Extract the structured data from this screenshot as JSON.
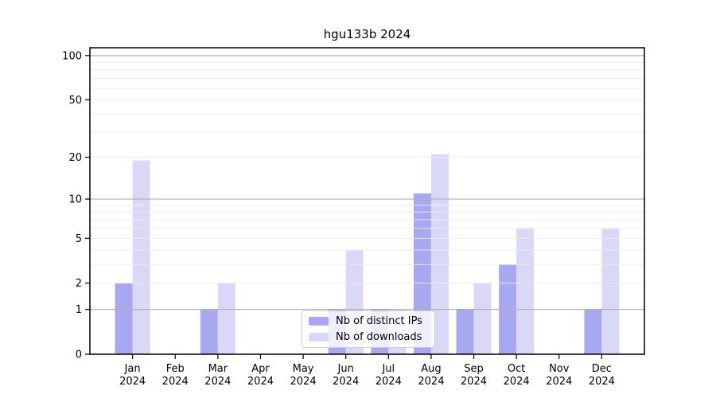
{
  "chart_data": {
    "type": "bar",
    "title": "hgu133b 2024",
    "categories": [
      "Jan",
      "Feb",
      "Mar",
      "Apr",
      "May",
      "Jun",
      "Jul",
      "Aug",
      "Sep",
      "Oct",
      "Nov",
      "Dec"
    ],
    "category_sublabel": "2024",
    "series": [
      {
        "name": "Nb of distinct IPs",
        "color": "#a8a8f0",
        "values": [
          2,
          0,
          1,
          0,
          0,
          1,
          1,
          11,
          1,
          3,
          0,
          1
        ]
      },
      {
        "name": "Nb of downloads",
        "color": "#d9d9f7",
        "values": [
          19,
          0,
          2,
          0,
          0,
          4,
          1,
          21,
          2,
          6,
          0,
          6
        ]
      }
    ],
    "y_ticks": [
      0,
      1,
      2,
      5,
      10,
      20,
      50,
      100
    ],
    "major_gridlines": [
      1,
      10,
      100
    ],
    "minor_gridlines": [
      2,
      3,
      4,
      5,
      6,
      7,
      8,
      9,
      20,
      30,
      40,
      50,
      60,
      70,
      80,
      90
    ],
    "scale": "log1p",
    "ylim": [
      0,
      113
    ],
    "grid": true,
    "legend_position": "lower center",
    "axis_color": "#000000",
    "major_grid_color": "#b0b0b0",
    "minor_grid_color": "#ececec"
  }
}
